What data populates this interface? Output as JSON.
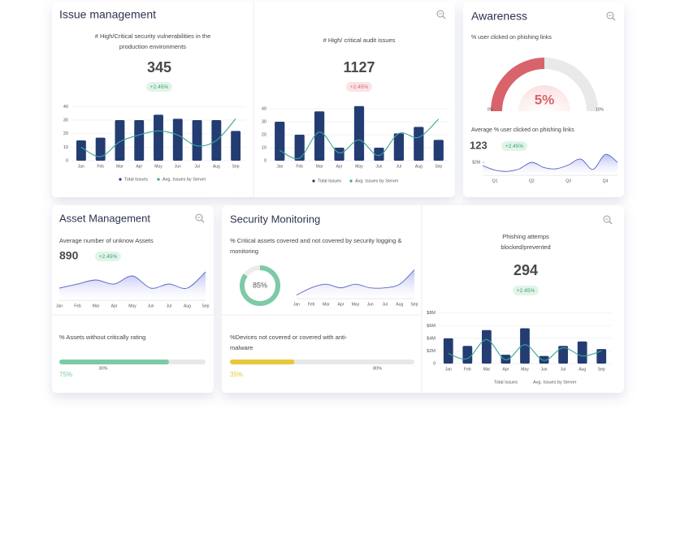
{
  "issue_management": {
    "title": "Issue management",
    "vulnerabilities": {
      "subtitle": "# High/Critical security vulnerabilities in the production environments",
      "value": 345,
      "change": "+2.45%",
      "chart": {
        "type": "bar_line",
        "categories": [
          "Jan",
          "Feb",
          "Mar",
          "Apr",
          "May",
          "Jun",
          "Jul",
          "Aug",
          "Sep"
        ],
        "series": [
          {
            "name": "Total Issues",
            "type": "bar",
            "color": "#233d73",
            "values": [
              15,
              17,
              30,
              30,
              34,
              31,
              30,
              30,
              22
            ]
          },
          {
            "name": "Avg. Issues by Server",
            "type": "line",
            "color": "#3aa69a",
            "values": [
              10,
              3,
              14,
              19,
              22,
              19,
              11,
              15,
              31
            ]
          }
        ],
        "ylim": [
          0,
          42
        ],
        "yticks": [
          0,
          10,
          20,
          30,
          40
        ],
        "grid": true
      }
    },
    "audit": {
      "subtitle": "# High/ critical audit issues",
      "value": 1127,
      "change": "+2.45%",
      "chart": {
        "type": "bar_line",
        "categories": [
          "Jan",
          "Feb",
          "Mar",
          "Apr",
          "May",
          "Jun",
          "Jul",
          "Aug",
          "Sep"
        ],
        "series": [
          {
            "name": "Total Issues",
            "type": "bar",
            "color": "#233d73",
            "values": [
              30,
              20,
              38,
              10,
              42,
              10,
              21,
              26,
              16
            ]
          },
          {
            "name": "Avg. Issues by Server",
            "type": "line",
            "color": "#3aa69a",
            "values": [
              8,
              2,
              22,
              6,
              16,
              4,
              21,
              18,
              32
            ]
          }
        ],
        "ylim": [
          0,
          45
        ],
        "yticks": [
          0,
          10,
          20,
          30,
          40
        ],
        "grid": true
      }
    }
  },
  "awareness": {
    "title": "Awareness",
    "phishing_clicks": {
      "subtitle": "% user clicked on phishing links",
      "chart": {
        "type": "gauge",
        "value": 5,
        "value_label": "5%",
        "color": "#d9636b",
        "min": {
          "value": 0,
          "label": "0%"
        },
        "max": {
          "value": 10,
          "label": "10%"
        }
      }
    },
    "average_clicks": {
      "subtitle": "Average % user clicked on phishing links",
      "value": 123,
      "change": "+2.45%",
      "chart": {
        "type": "area",
        "categories": [
          null,
          "Q1",
          null,
          null,
          "Q2",
          null,
          null,
          "Q3",
          null,
          null,
          "Q4",
          null
        ],
        "values": [
          1500000,
          800000,
          600000,
          1000000,
          2000000,
          1200000,
          1000000,
          1600000,
          2500000,
          900000,
          3200000,
          2000000
        ],
        "color": "#5b63c8",
        "ylim": [
          0,
          4000000
        ],
        "yticks": [
          {
            "value": 2000000,
            "label": "$2M"
          }
        ]
      }
    }
  },
  "asset_management": {
    "title": "Asset Management",
    "unknown_assets": {
      "subtitle": "Average number of unknow Assets",
      "value": 890,
      "change": "+2.45%",
      "chart": {
        "type": "area",
        "categories": [
          "Jan",
          "Feb",
          "Mar",
          "Apr",
          "May",
          "Jun",
          "Jul",
          "Aug",
          "Sep"
        ],
        "values": [
          3,
          4,
          5,
          4,
          6,
          3,
          4,
          3,
          7
        ],
        "color": "#5b63c8",
        "ylim": [
          0,
          8
        ]
      }
    },
    "critical_rating": {
      "subtitle": "% Assets without critically rating",
      "chart": {
        "type": "progress",
        "value": 75,
        "value_label": "75%",
        "target": 30,
        "target_label": "30%",
        "xlim": [
          0,
          100
        ],
        "color": "#7dcaa6"
      }
    }
  },
  "security_monitoring": {
    "title": "Security Monitoring",
    "logging": {
      "subtitle": "% Critical assets covered and not covered by security logging & monitoring",
      "donut": {
        "type": "donut",
        "value": 85,
        "value_label": "85%",
        "xlim": [
          0,
          100
        ],
        "color": "#7dcaa6"
      },
      "chart": {
        "type": "area",
        "categories": [
          "Jan",
          "Feb",
          "Mar",
          "Apr",
          "May",
          "Jun",
          "Jul",
          "Aug",
          "Sep"
        ],
        "values": [
          1,
          3,
          4,
          3,
          4,
          3,
          3,
          4,
          8
        ],
        "color": "#5b63c8",
        "ylim": [
          0,
          9
        ]
      }
    },
    "anti_malware": {
      "subtitle": "%Devices not covered or covered with anti-malware",
      "chart": {
        "type": "progress",
        "value": 35,
        "value_label": "35%",
        "target": 80,
        "target_label": "80%",
        "xlim": [
          0,
          100
        ],
        "color": "#e6c83c"
      }
    },
    "phishing_blocked": {
      "subtitle": "Phishing attemps blocked/prevented",
      "value": 294,
      "change": "+2.45%",
      "chart": {
        "type": "bar_line",
        "categories": [
          "Jan",
          "Feb",
          "Mar",
          "Apr",
          "May",
          "Jun",
          "Jul",
          "Aug",
          "Sep"
        ],
        "series": [
          {
            "name": "Total Issues",
            "type": "bar",
            "color": "#233d73",
            "values": [
              4000000,
              2800000,
              5300000,
              1400000,
              5600000,
              1200000,
              2800000,
              3500000,
              2300000
            ]
          },
          {
            "name": "Avg. Issues by Server",
            "type": "line",
            "color": "#3aa69a",
            "values": [
              1600000,
              800000,
              3800000,
              600000,
              3000000,
              500000,
              2500000,
              1200000,
              2000000
            ]
          }
        ],
        "ylim": [
          0,
          9000000
        ],
        "yticks": [
          0,
          {
            "value": 2000000,
            "label": "$2M"
          },
          {
            "value": 4000000,
            "label": "$4M"
          },
          {
            "value": 6000000,
            "label": "$6M"
          },
          {
            "value": 8000000,
            "label": "$8M"
          }
        ],
        "grid": true
      }
    }
  }
}
